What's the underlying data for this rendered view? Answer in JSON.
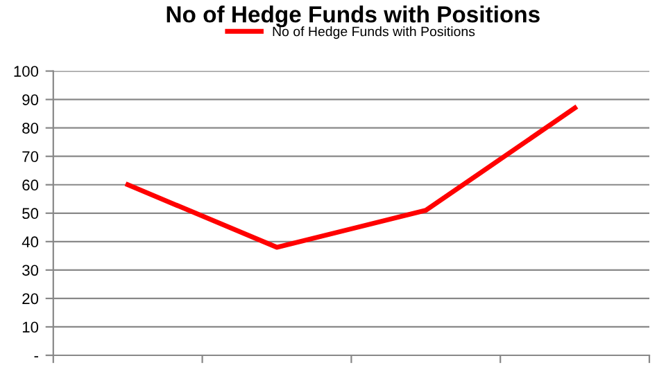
{
  "chart_data": {
    "type": "line",
    "title": "No of Hedge Funds with Positions",
    "categories": [
      null,
      null,
      null,
      null
    ],
    "series": [
      {
        "name": "No of Hedge Funds with Positions",
        "color": "#ff0000",
        "values": [
          60,
          38,
          51,
          87
        ]
      }
    ],
    "ylim": [
      0,
      100
    ],
    "yticks": [
      {
        "value": 0,
        "label": "-"
      },
      10,
      20,
      30,
      40,
      50,
      60,
      70,
      80,
      90,
      100
    ],
    "grid": "y",
    "legend": "top",
    "marker": "none",
    "line_style": "solid"
  }
}
